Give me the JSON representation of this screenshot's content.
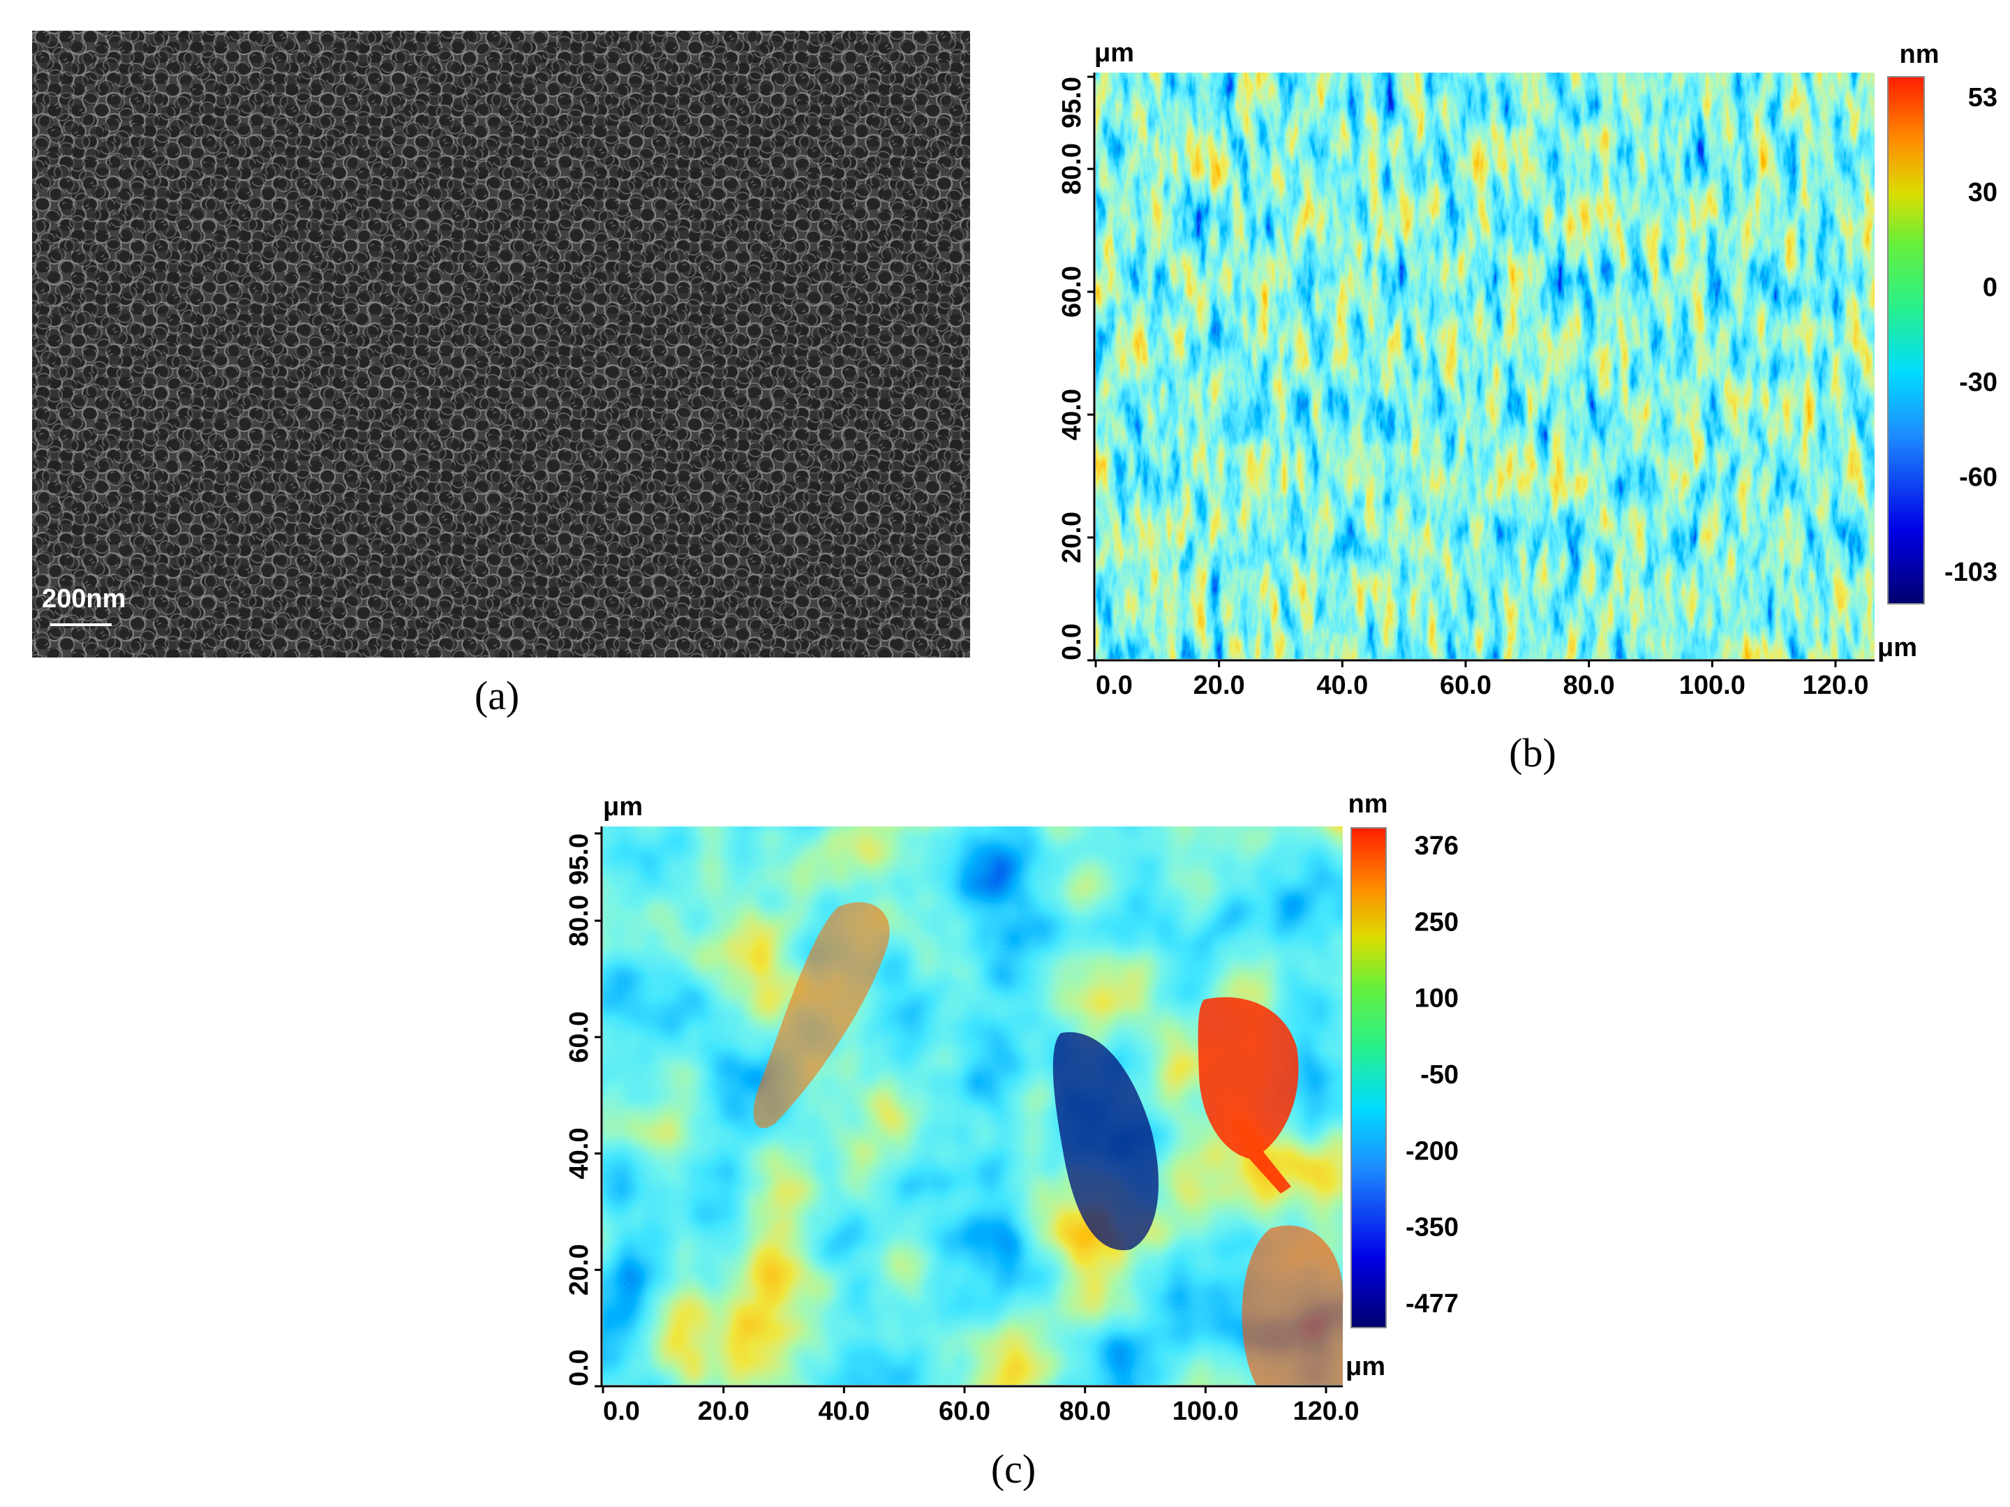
{
  "panels": {
    "a": {
      "caption": "(a)",
      "scale_bar_label": "200nm",
      "image_kind": "sem-hexagonal-pore-array"
    },
    "b": {
      "caption": "(b)",
      "x_unit": "μm",
      "y_unit": "μm",
      "x_ticks": [
        "0.0",
        "20.0",
        "40.0",
        "60.0",
        "80.0",
        "100.0",
        "120.0"
      ],
      "y_ticks": [
        "0.0",
        "20.0",
        "40.0",
        "60.0",
        "80.0",
        "95.0"
      ],
      "colorbar_unit": "nm",
      "colorbar_ticks": [
        "53",
        "30",
        "0",
        "-30",
        "-60",
        "-103"
      ],
      "colorbar_range": [
        -103,
        53
      ]
    },
    "c": {
      "caption": "(c)",
      "x_unit": "μm",
      "y_unit": "μm",
      "x_ticks": [
        "0.0",
        "20.0",
        "40.0",
        "60.0",
        "80.0",
        "100.0",
        "120.0"
      ],
      "y_ticks": [
        "0.0",
        "20.0",
        "40.0",
        "60.0",
        "80.0",
        "95.0"
      ],
      "colorbar_unit": "nm",
      "colorbar_ticks": [
        "376",
        "250",
        "100",
        "-50",
        "-200",
        "-350",
        "-477"
      ],
      "colorbar_range": [
        -477,
        376
      ]
    }
  },
  "colors": {
    "sem_bg": "#4a4a4a",
    "sem_pore": "#2a2a2a",
    "sem_rim": "#9a9a9a",
    "colormap": [
      "#00006e",
      "#0000e6",
      "#1e8cff",
      "#00dcff",
      "#28f08c",
      "#64f03c",
      "#dcdc00",
      "#ff8c00",
      "#ff1e00"
    ]
  }
}
